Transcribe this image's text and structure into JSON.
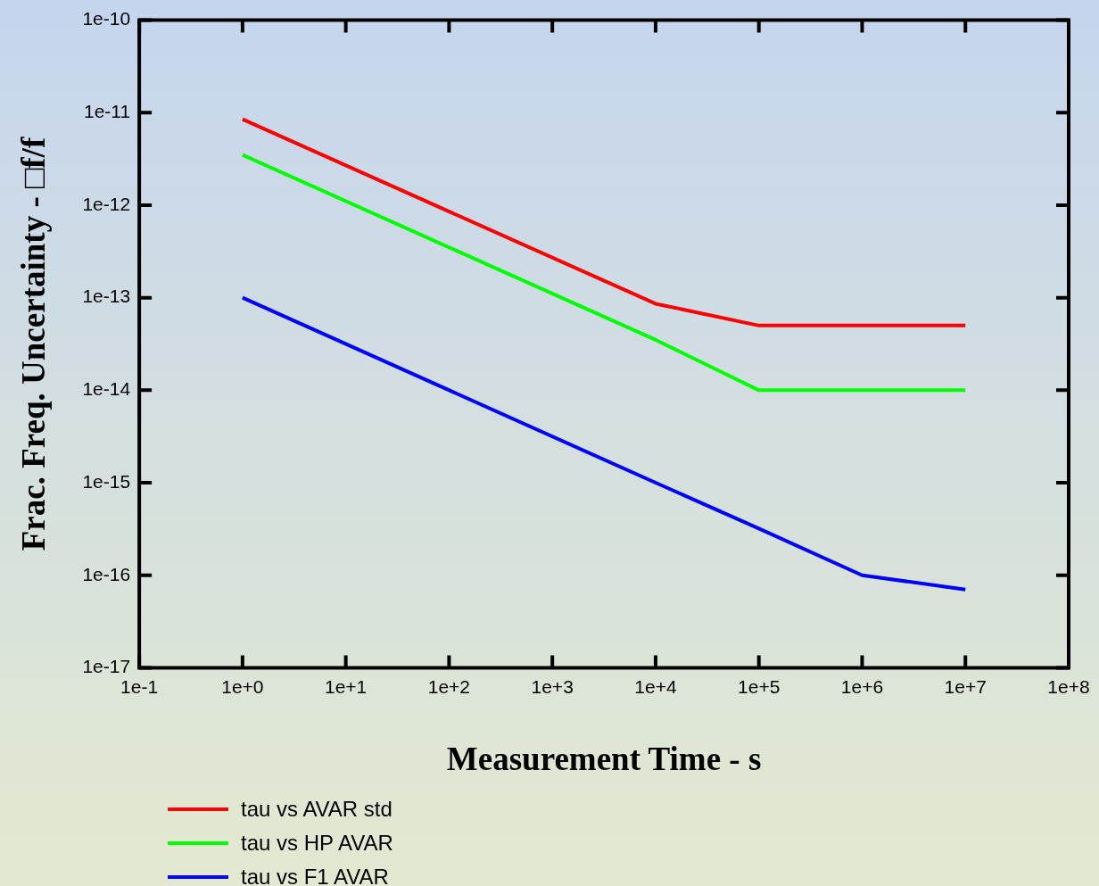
{
  "chart_data": {
    "type": "line",
    "xlabel": "Measurement Time - s",
    "ylabel": "Frac. Freq. Uncertainty - □f/f",
    "log": "xy",
    "grid": false,
    "legend": "bottom left",
    "marker": "none",
    "line_style": "solid",
    "xlim": [
      0.1,
      100000000
    ],
    "ylim": [
      1e-17,
      1e-10
    ],
    "xticks": [
      {
        "value": 0.1,
        "label": "1e-1"
      },
      {
        "value": 1,
        "label": "1e+0"
      },
      {
        "value": 10,
        "label": "1e+1"
      },
      {
        "value": 100,
        "label": "1e+2"
      },
      {
        "value": 1000,
        "label": "1e+3"
      },
      {
        "value": 10000,
        "label": "1e+4"
      },
      {
        "value": 100000,
        "label": "1e+5"
      },
      {
        "value": 1000000,
        "label": "1e+6"
      },
      {
        "value": 10000000,
        "label": "1e+7"
      },
      {
        "value": 100000000,
        "label": "1e+8"
      }
    ],
    "yticks": [
      {
        "value": 1e-17,
        "label": "1e-17"
      },
      {
        "value": 1e-16,
        "label": "1e-16"
      },
      {
        "value": 1e-15,
        "label": "1e-15"
      },
      {
        "value": 1e-14,
        "label": "1e-14"
      },
      {
        "value": 1e-13,
        "label": "1e-13"
      },
      {
        "value": 1e-12,
        "label": "1e-12"
      },
      {
        "value": 1e-11,
        "label": "1e-11"
      },
      {
        "value": 1e-10,
        "label": "1e-10"
      }
    ],
    "x": [
      1,
      10000,
      100000,
      1000000,
      10000000
    ],
    "series": [
      {
        "name": "tau vs AVAR std",
        "color": "#ff0000",
        "values": [
          8.5e-12,
          8.6e-14,
          5e-14,
          5e-14,
          5e-14
        ]
      },
      {
        "name": "tau vs HP AVAR",
        "color": "#00ff00",
        "values": [
          3.5e-12,
          3.5e-14,
          1e-14,
          1e-14,
          1e-14
        ]
      },
      {
        "name": "tau vs F1 AVAR",
        "color": "#0000ff",
        "values": [
          1e-13,
          1e-15,
          3.2e-16,
          1e-16,
          7e-17
        ]
      }
    ]
  }
}
